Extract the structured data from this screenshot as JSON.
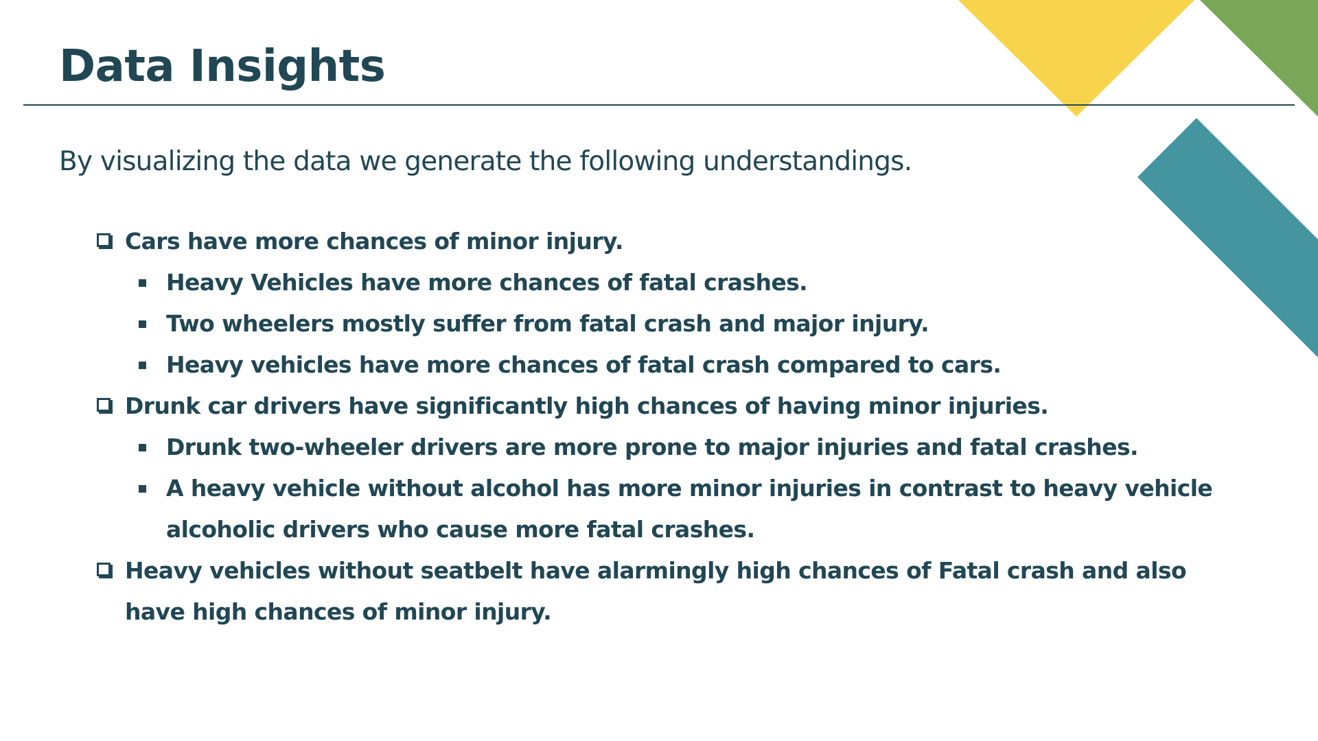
{
  "slide": {
    "title": "Data Insights",
    "subtitle": "By visualizing the data we generate the following understandings.",
    "bullets": [
      {
        "level": 1,
        "marker": "checkbox-square",
        "text": "Cars have more chances of minor injury."
      },
      {
        "level": 2,
        "marker": "filled-square",
        "text": "Heavy Vehicles have more chances of fatal crashes."
      },
      {
        "level": 2,
        "marker": "filled-square",
        "text": "Two wheelers mostly suffer from fatal crash and major injury."
      },
      {
        "level": 2,
        "marker": "filled-square",
        "text": "Heavy vehicles have more chances of fatal crash compared to cars."
      },
      {
        "level": 1,
        "marker": "checkbox-square",
        "text": "Drunk car drivers have significantly high chances of having minor injuries."
      },
      {
        "level": 2,
        "marker": "filled-square",
        "text": "Drunk two-wheeler drivers are more prone to major injuries and fatal crashes."
      },
      {
        "level": 2,
        "marker": "filled-square",
        "text": "A heavy vehicle without alcohol has more minor injuries in contrast to heavy vehicle alcoholic drivers who cause more fatal crashes."
      },
      {
        "level": 1,
        "marker": "checkbox-square",
        "text": "Heavy vehicles without seatbelt have alarmingly high  chances of Fatal crash and also have high chances of minor injury."
      }
    ]
  },
  "colors": {
    "text": "#214755",
    "rule": "#214755",
    "yellow_shape": "#F8D44C",
    "green_shape": "#79A657",
    "teal_shape": "#4595A0",
    "background": "#FFFFFF"
  }
}
